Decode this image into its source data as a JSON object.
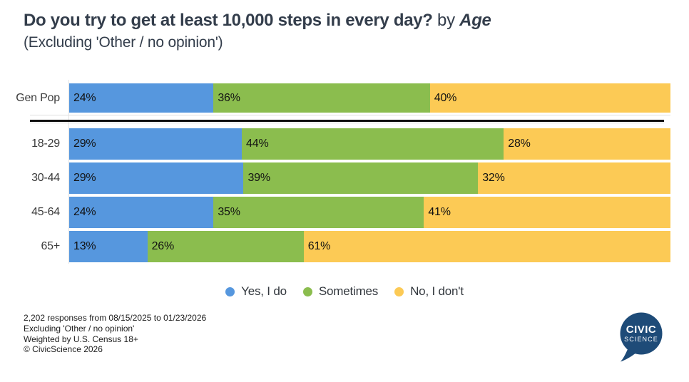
{
  "header": {
    "title_main": "Do you try to get at least 10,000 steps in every day?",
    "title_connector": " by ",
    "title_breakout": "Age",
    "subtitle": "(Excluding 'Other / no opinion')"
  },
  "chart_data": {
    "type": "bar",
    "variant": "horizontal-stacked",
    "categories": [
      "Gen Pop",
      "18-29",
      "30-44",
      "45-64",
      "65+"
    ],
    "series": [
      {
        "name": "Yes, I do",
        "color": "#5697DE",
        "values": [
          24,
          29,
          29,
          24,
          13
        ]
      },
      {
        "name": "Sometimes",
        "color": "#8BBD4E",
        "values": [
          36,
          44,
          39,
          35,
          26
        ]
      },
      {
        "name": "No, I don't",
        "color": "#FCCA55",
        "values": [
          40,
          28,
          32,
          41,
          61
        ]
      }
    ],
    "value_suffix": "%",
    "xlim": [
      0,
      100
    ],
    "grid": false,
    "legend_position": "bottom",
    "genpop_separated": true
  },
  "footer": {
    "lines": [
      "2,202 responses from 08/15/2025 to 01/23/2026",
      "Excluding 'Other / no opinion'",
      "Weighted by U.S. Census 18+",
      "© CivicScience 2026"
    ]
  },
  "logo": {
    "line1": "CIVIC",
    "line2": "SCIENCE",
    "color": "#1E4B78",
    "text_color": "#ffffff"
  }
}
